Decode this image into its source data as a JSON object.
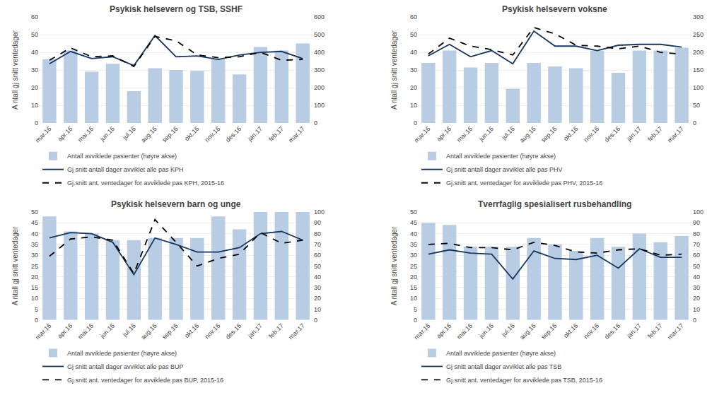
{
  "chart_data": [
    {
      "type": "bar",
      "title": "Psykisk helsevern og TSB, SSHF",
      "categories": [
        "mar.16",
        "apr.16",
        "mai.16",
        "jun.16",
        "jul.16",
        "aug.16",
        "sep.16",
        "okt.16",
        "nov.16",
        "des.16",
        "jan.17",
        "feb.17",
        "mar.17"
      ],
      "ylabel": "A ntall gj snitt ventedager",
      "ylim": [
        0,
        60
      ],
      "yticks": [
        0,
        10,
        20,
        30,
        40,
        50,
        60
      ],
      "y2lim": [
        0,
        600
      ],
      "y2ticks": [
        0,
        100,
        200,
        300,
        400,
        500,
        600
      ],
      "grid": true,
      "legend": "bottom",
      "series": [
        {
          "name": "Antall avviklede pasienter (høyre akse)",
          "type": "bar",
          "axis": "y2",
          "color": "#b8cce4",
          "values": [
            360,
            410,
            290,
            335,
            180,
            310,
            300,
            295,
            360,
            275,
            430,
            410,
            450
          ]
        },
        {
          "name": "Gj snitt antall dager avviklet alle pas KPH",
          "type": "line",
          "line_style": "solid",
          "color": "#17375e",
          "values": [
            33.5,
            40.5,
            36.5,
            37.5,
            32.5,
            49.5,
            37.5,
            38.0,
            36.0,
            38.5,
            40.0,
            40.5,
            36.5
          ]
        },
        {
          "name": "Gj.snitt ant. ventedager for avviklede pas KPH, 2015-16",
          "type": "line",
          "line_style": "dashed",
          "color": "#000000",
          "values": [
            35.5,
            42.5,
            37.5,
            38.0,
            32.0,
            49.0,
            46.5,
            38.5,
            37.0,
            37.5,
            40.0,
            35.5,
            36.0
          ]
        }
      ]
    },
    {
      "type": "bar",
      "title": "Psykisk helsevern voksne",
      "categories": [
        "mar.16",
        "apr.16",
        "mai.16",
        "jun.16",
        "jul.16",
        "aug.16",
        "sep.16",
        "okt.16",
        "nov.16",
        "des.16",
        "jan.17",
        "feb.17",
        "mar.17"
      ],
      "ylabel": "A ntall gj snitt ventedager",
      "ylim": [
        0,
        60
      ],
      "yticks": [
        0,
        10,
        20,
        30,
        40,
        50,
        60
      ],
      "y2lim": [
        0,
        300
      ],
      "y2ticks": [
        0,
        50,
        100,
        150,
        200,
        250,
        300
      ],
      "grid": true,
      "legend": "bottom",
      "series": [
        {
          "name": "Antall avviklede pasienter (høyre akse)",
          "type": "bar",
          "axis": "y2",
          "color": "#b8cce4",
          "values": [
            170,
            205,
            157,
            170,
            97,
            170,
            160,
            155,
            205,
            142,
            205,
            205,
            213
          ]
        },
        {
          "name": "Gj snitt antall dager avviklet alle pas PHV",
          "type": "line",
          "line_style": "solid",
          "color": "#17375e",
          "values": [
            38.0,
            44.5,
            37.5,
            41.0,
            33.5,
            52.0,
            43.5,
            43.5,
            41.0,
            44.0,
            44.5,
            44.5,
            43.0
          ]
        },
        {
          "name": "Gj.snitt ant. ventedager for avviklede pas PHV, 2015-16",
          "type": "line",
          "line_style": "dashed",
          "color": "#000000",
          "values": [
            39.0,
            48.0,
            43.5,
            41.5,
            38.5,
            54.0,
            50.5,
            44.0,
            43.5,
            42.0,
            43.5,
            40.0,
            39.0
          ]
        }
      ]
    },
    {
      "type": "bar",
      "title": "Psykisk helsevern barn og unge",
      "categories": [
        "mar.16",
        "apr.16",
        "mai.16",
        "jun.16",
        "jul.16",
        "aug.16",
        "sep.16",
        "okt.16",
        "nov.16",
        "des.16",
        "jan.17",
        "feb.17",
        "mar.17"
      ],
      "ylabel": "A ntall gj snitt ventedager",
      "ylim": [
        0,
        50
      ],
      "yticks": [
        0,
        5,
        10,
        15,
        20,
        25,
        30,
        35,
        40,
        45,
        50
      ],
      "y2lim": [
        0,
        100
      ],
      "y2ticks": [
        0,
        10,
        20,
        30,
        40,
        50,
        60,
        70,
        80,
        90,
        100
      ],
      "grid": true,
      "legend": "bottom",
      "series": [
        {
          "name": "Antall avviklede pasienter (høyre akse)",
          "type": "bar",
          "axis": "y2",
          "color": "#b8cce4",
          "values": [
            96,
            82,
            80,
            74,
            74,
            76,
            76,
            76,
            96,
            84,
            100,
            100,
            100
          ]
        },
        {
          "name": "Gj snitt antall dager avviklet alle pas BUP",
          "type": "line",
          "line_style": "solid",
          "color": "#17375e",
          "values": [
            38.0,
            40.5,
            40.0,
            36.0,
            21.0,
            38.0,
            35.0,
            31.5,
            31.5,
            33.5,
            40.0,
            41.0,
            37.0
          ]
        },
        {
          "name": "Gj.snitt ant. ventedager for avviklede pas BUP, 2015-16",
          "type": "line",
          "line_style": "dashed",
          "color": "#000000",
          "values": [
            29.5,
            37.5,
            38.5,
            37.0,
            21.5,
            46.5,
            36.0,
            25.0,
            28.5,
            30.5,
            40.5,
            35.5,
            37.0
          ]
        }
      ]
    },
    {
      "type": "bar",
      "title": "Tverrfaglig spesialisert rusbehandling",
      "categories": [
        "mar.16",
        "apr.16",
        "mai.16",
        "jun.16",
        "jul.16",
        "aug.16",
        "sep.16",
        "okt.16",
        "nov.16",
        "des.16",
        "jan.17",
        "feb.17",
        "mar.17"
      ],
      "ylabel": "A ntall gj snitt ventedager",
      "ylim": [
        0,
        50
      ],
      "yticks": [
        0,
        5,
        10,
        15,
        20,
        25,
        30,
        35,
        40,
        45,
        50
      ],
      "y2lim": [
        0,
        100
      ],
      "y2ticks": [
        0,
        10,
        20,
        30,
        40,
        50,
        60,
        70,
        80,
        90,
        100
      ],
      "grid": true,
      "legend": "bottom",
      "series": [
        {
          "name": "Antall avviklede pasienter (høyre akse)",
          "type": "bar",
          "axis": "y2",
          "color": "#b8cce4",
          "values": [
            90,
            88,
            68,
            68,
            68,
            76,
            70,
            64,
            76,
            68,
            80,
            72,
            78
          ]
        },
        {
          "name": "Gj snitt antall dager avviklet alle pas TSB",
          "type": "line",
          "line_style": "solid",
          "color": "#17375e",
          "values": [
            30.5,
            32.5,
            31.0,
            30.5,
            19.0,
            32.0,
            28.5,
            28.0,
            30.0,
            24.0,
            33.0,
            29.0,
            29.0
          ]
        },
        {
          "name": "Gj.snitt ant. ventedager for avviklede pas TSB, 2015-16",
          "type": "line",
          "line_style": "dashed",
          "color": "#000000",
          "values": [
            35.0,
            35.5,
            33.5,
            33.5,
            32.5,
            36.0,
            34.5,
            31.5,
            31.0,
            32.5,
            33.0,
            30.0,
            30.5
          ]
        }
      ]
    }
  ]
}
